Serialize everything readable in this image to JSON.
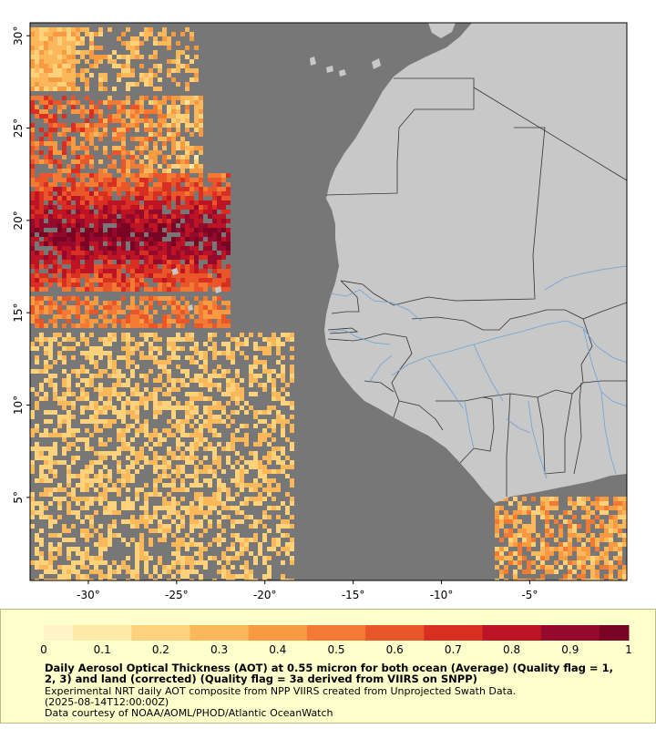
{
  "map": {
    "lat_ticks": [
      {
        "value": 30,
        "label": "30°"
      },
      {
        "value": 25,
        "label": "25°"
      },
      {
        "value": 20,
        "label": "20°"
      },
      {
        "value": 15,
        "label": "15°"
      },
      {
        "value": 10,
        "label": "10°"
      },
      {
        "value": 5,
        "label": "5°"
      }
    ],
    "lon_ticks": [
      {
        "value": -30,
        "label": "-30°"
      },
      {
        "value": -25,
        "label": "-25°"
      },
      {
        "value": -20,
        "label": "-20°"
      },
      {
        "value": -15,
        "label": "-15°"
      },
      {
        "value": -10,
        "label": "-10°"
      },
      {
        "value": -5,
        "label": "-5°"
      }
    ],
    "extent": {
      "lon": [
        -33.3,
        0.5
      ],
      "lat": [
        0.5,
        30.7
      ]
    },
    "colors": {
      "ocean_nodata": "#777777",
      "land": "#c8c8c8",
      "border": "#333333",
      "river": "#6fa0d8"
    }
  },
  "legend": {
    "ticks": [
      "0",
      "0.1",
      "0.2",
      "0.3",
      "0.4",
      "0.5",
      "0.6",
      "0.7",
      "0.8",
      "0.9",
      "1"
    ],
    "colors": [
      "#fff4c8",
      "#fde9a8",
      "#fdd27a",
      "#fbb85a",
      "#f79a42",
      "#f27a34",
      "#e8562a",
      "#d92e22",
      "#bc1424",
      "#950a2c",
      "#7a0424"
    ],
    "title": "Daily Aerosol Optical Thickness (AOT) at 0.55 micron for both ocean (Average) (Quality flag = 1, 2, 3) and land (corrected) (Quality flag = 3a derived from VIIRS on SNPP)",
    "subtitle": "Experimental NRT daily AOT composite from NPP VIIRS created from Unprojected Swath Data.",
    "timestamp": "(2025-08-14T12:00:00Z)",
    "credit": "Data courtesy of NOAA/AOML/PHOD/Atlantic OceanWatch"
  }
}
